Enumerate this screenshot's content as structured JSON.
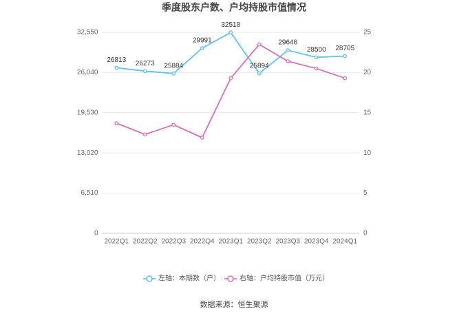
{
  "chart_data": {
    "type": "line",
    "title": "季度股东户数、户均持股市值情况",
    "categories": [
      "2022Q1",
      "2022Q2",
      "2022Q3",
      "2022Q4",
      "2023Q1",
      "2023Q2",
      "2023Q3",
      "2023Q4",
      "2024Q1"
    ],
    "series": [
      {
        "name": "左轴：本期数（户）",
        "color": "#5bc3ee",
        "values": [
          26813,
          26273,
          25884,
          29991,
          32518,
          25894,
          29646,
          28500,
          28705
        ],
        "show_labels": true
      },
      {
        "name": "右轴：户均持股市值（万元）",
        "color": "#d96eb8",
        "axis": "y2",
        "values": [
          13.7,
          12.3,
          13.5,
          11.9,
          19.3,
          23.5,
          21.4,
          20.5,
          19.3
        ]
      }
    ],
    "ylim": [
      0,
      32550
    ],
    "yticks": [
      0,
      {
        "value": 6510,
        "label": "6,510"
      },
      {
        "value": 13020,
        "label": "13,020"
      },
      {
        "value": 19530,
        "label": "19,530"
      },
      {
        "value": 26040,
        "label": "26,040"
      },
      {
        "value": 32550,
        "label": "32,550"
      }
    ],
    "y2lim": [
      0,
      25
    ],
    "y2ticks": [
      0,
      5,
      10,
      15,
      20,
      25
    ],
    "grid": true,
    "source": "数据来源：恒生聚源"
  }
}
